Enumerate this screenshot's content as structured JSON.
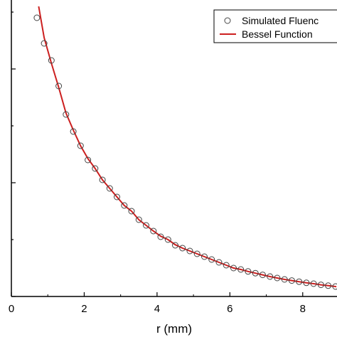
{
  "chart_data": {
    "type": "scatter",
    "xlabel": "r (mm)",
    "ylabel": "",
    "xlim": [
      0,
      9
    ],
    "ylim": [
      0,
      1
    ],
    "x_ticks": [
      0,
      2,
      4,
      6,
      8
    ],
    "x_tick_labels": [
      "0",
      "2",
      "4",
      "6",
      "8"
    ],
    "grid": false,
    "legend_position": "top-right",
    "series": [
      {
        "name": "Simulated Fluenc",
        "kind": "scatter",
        "marker": "open-circle",
        "color": "#444444",
        "x": [
          0.7,
          0.9,
          1.1,
          1.3,
          1.5,
          1.7,
          1.9,
          2.1,
          2.3,
          2.5,
          2.7,
          2.9,
          3.1,
          3.3,
          3.5,
          3.7,
          3.9,
          4.1,
          4.3,
          4.5,
          4.7,
          4.9,
          5.1,
          5.3,
          5.5,
          5.7,
          5.9,
          6.1,
          6.3,
          6.5,
          6.7,
          6.9,
          7.1,
          7.3,
          7.5,
          7.7,
          7.9,
          8.1,
          8.3,
          8.5,
          8.7,
          8.9
        ],
        "y": [
          0.98,
          0.89,
          0.83,
          0.74,
          0.64,
          0.58,
          0.53,
          0.48,
          0.45,
          0.41,
          0.38,
          0.35,
          0.32,
          0.3,
          0.27,
          0.25,
          0.23,
          0.21,
          0.2,
          0.18,
          0.17,
          0.16,
          0.15,
          0.14,
          0.13,
          0.12,
          0.11,
          0.1,
          0.095,
          0.088,
          0.082,
          0.076,
          0.07,
          0.065,
          0.06,
          0.056,
          0.052,
          0.048,
          0.045,
          0.041,
          0.038,
          0.035
        ]
      },
      {
        "name": "Bessel Function",
        "kind": "line",
        "color": "#cc1f1f",
        "x": [
          0.75,
          0.9,
          1.1,
          1.3,
          1.5,
          1.7,
          1.9,
          2.1,
          2.3,
          2.5,
          2.7,
          2.9,
          3.1,
          3.3,
          3.5,
          3.7,
          3.9,
          4.1,
          4.3,
          4.5,
          4.7,
          4.9,
          5.1,
          5.3,
          5.5,
          5.7,
          5.9,
          6.1,
          6.3,
          6.5,
          6.7,
          6.9,
          7.1,
          7.3,
          7.5,
          7.7,
          7.9,
          8.1,
          8.3,
          8.5,
          8.7,
          8.9,
          9.0
        ],
        "y": [
          1.02,
          0.91,
          0.82,
          0.735,
          0.645,
          0.585,
          0.53,
          0.485,
          0.45,
          0.41,
          0.38,
          0.35,
          0.32,
          0.3,
          0.27,
          0.25,
          0.23,
          0.212,
          0.2,
          0.182,
          0.17,
          0.16,
          0.15,
          0.14,
          0.13,
          0.12,
          0.11,
          0.1,
          0.095,
          0.088,
          0.082,
          0.076,
          0.07,
          0.065,
          0.06,
          0.056,
          0.052,
          0.048,
          0.045,
          0.041,
          0.038,
          0.035,
          0.034
        ]
      }
    ]
  }
}
